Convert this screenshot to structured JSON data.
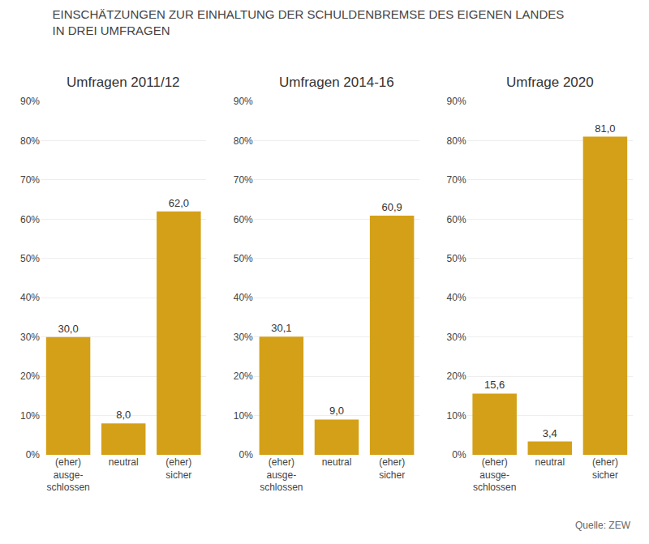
{
  "title": "EINSCHÄTZUNGEN ZUR EINHALTUNG DER SCHULDENBREMSE DES EIGENEN LANDES\nIN DREI UMFRAGEN",
  "annotations": [
    "Quelle: ZEW"
  ],
  "chart_data": [
    {
      "type": "bar",
      "title": "Umfragen 2011/12",
      "categories": [
        "(eher)\nausge-\nschlossen",
        "neutral",
        "(eher)\nsicher"
      ],
      "values": [
        30.0,
        8.0,
        62.0
      ],
      "value_labels": [
        "30,0",
        "8,0",
        "62,0"
      ],
      "color": "#D4A017",
      "data_labels": true,
      "grid": true,
      "ylim": [
        0,
        90
      ],
      "yticks": [
        {
          "value": 0,
          "label": "0%"
        },
        {
          "value": 10,
          "label": "10%"
        },
        {
          "value": 20,
          "label": "20%"
        },
        {
          "value": 30,
          "label": "30%"
        },
        {
          "value": 40,
          "label": "40%"
        },
        {
          "value": 50,
          "label": "50%"
        },
        {
          "value": 60,
          "label": "60%"
        },
        {
          "value": 70,
          "label": "70%"
        },
        {
          "value": 80,
          "label": "80%"
        },
        {
          "value": 90,
          "label": "90%"
        }
      ]
    },
    {
      "type": "bar",
      "title": "Umfragen 2014-16",
      "categories": [
        "(eher)\nausge-\nschlossen",
        "neutral",
        "(eher)\nsicher"
      ],
      "values": [
        30.1,
        9.0,
        60.9
      ],
      "value_labels": [
        "30,1",
        "9,0",
        "60,9"
      ],
      "color": "#D4A017",
      "data_labels": true,
      "grid": true,
      "ylim": [
        0,
        90
      ],
      "yticks": [
        {
          "value": 0,
          "label": "0%"
        },
        {
          "value": 10,
          "label": "10%"
        },
        {
          "value": 20,
          "label": "20%"
        },
        {
          "value": 30,
          "label": "30%"
        },
        {
          "value": 40,
          "label": "40%"
        },
        {
          "value": 50,
          "label": "50%"
        },
        {
          "value": 60,
          "label": "60%"
        },
        {
          "value": 70,
          "label": "70%"
        },
        {
          "value": 80,
          "label": "80%"
        },
        {
          "value": 90,
          "label": "90%"
        }
      ]
    },
    {
      "type": "bar",
      "title": "Umfrage 2020",
      "categories": [
        "(eher)\nausge-\nschlossen",
        "neutral",
        "(eher)\nsicher"
      ],
      "values": [
        15.6,
        3.4,
        81.0
      ],
      "value_labels": [
        "15,6",
        "3,4",
        "81,0"
      ],
      "color": "#D4A017",
      "data_labels": true,
      "grid": true,
      "ylim": [
        0,
        90
      ],
      "yticks": [
        {
          "value": 0,
          "label": "0%"
        },
        {
          "value": 10,
          "label": "10%"
        },
        {
          "value": 20,
          "label": "20%"
        },
        {
          "value": 30,
          "label": "30%"
        },
        {
          "value": 40,
          "label": "40%"
        },
        {
          "value": 50,
          "label": "50%"
        },
        {
          "value": 60,
          "label": "60%"
        },
        {
          "value": 70,
          "label": "70%"
        },
        {
          "value": 80,
          "label": "80%"
        },
        {
          "value": 90,
          "label": "90%"
        }
      ]
    }
  ]
}
